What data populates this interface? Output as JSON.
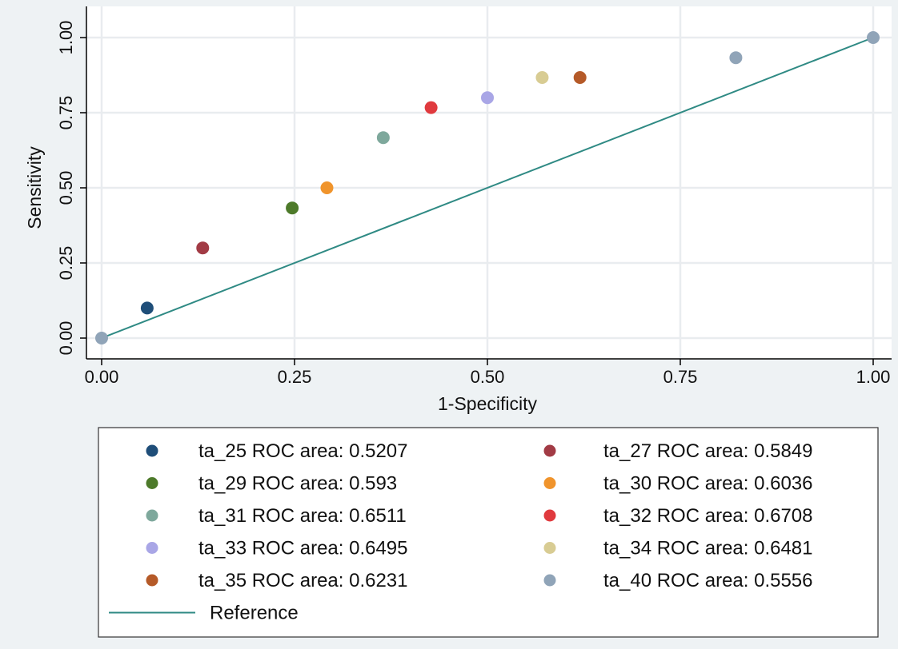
{
  "chart_data": {
    "type": "scatter",
    "xlabel": "1-Specificity",
    "ylabel": "Sensitivity",
    "xlim": [
      0,
      1
    ],
    "ylim": [
      0,
      1
    ],
    "x_ticks": [
      "0.00",
      "0.25",
      "0.50",
      "0.75",
      "1.00"
    ],
    "y_ticks": [
      "0.00",
      "0.25",
      "0.50",
      "0.75",
      "1.00"
    ],
    "grid": true,
    "legend_position": "bottom",
    "common_points": [
      {
        "x": 0,
        "y": 0
      },
      {
        "x": 1,
        "y": 1
      }
    ],
    "series": [
      {
        "name": "ta_25 ROC area: 0.5207",
        "color": "#1f4e79",
        "points": [
          {
            "x": 0.059,
            "y": 0.1
          }
        ]
      },
      {
        "name": "ta_27 ROC area: 0.5849",
        "color": "#a23b45",
        "points": [
          {
            "x": 0.131,
            "y": 0.3
          }
        ]
      },
      {
        "name": "ta_29 ROC area: 0.593",
        "color": "#4d7a2a",
        "points": [
          {
            "x": 0.247,
            "y": 0.433
          }
        ]
      },
      {
        "name": "ta_30 ROC area: 0.6036",
        "color": "#f0942c",
        "points": [
          {
            "x": 0.292,
            "y": 0.5
          }
        ]
      },
      {
        "name": "ta_31 ROC area: 0.6511",
        "color": "#7ea89c",
        "points": [
          {
            "x": 0.365,
            "y": 0.667
          }
        ]
      },
      {
        "name": "ta_32 ROC area: 0.6708",
        "color": "#e03a3e",
        "points": [
          {
            "x": 0.427,
            "y": 0.767
          }
        ]
      },
      {
        "name": "ta_33 ROC area: 0.6495",
        "color": "#a9a6e6",
        "points": [
          {
            "x": 0.5,
            "y": 0.8
          }
        ]
      },
      {
        "name": "ta_34 ROC area: 0.6481",
        "color": "#d8cc93",
        "points": [
          {
            "x": 0.571,
            "y": 0.867
          }
        ]
      },
      {
        "name": "ta_35 ROC area: 0.6231",
        "color": "#b55a28",
        "points": [
          {
            "x": 0.62,
            "y": 0.867
          }
        ]
      },
      {
        "name": "ta_40 ROC area: 0.5556",
        "color": "#90a4b8",
        "points": [
          {
            "x": 0.822,
            "y": 0.933
          }
        ]
      }
    ],
    "reference": {
      "name": "Reference",
      "color": "#2f8a84",
      "points": [
        {
          "x": 0,
          "y": 0
        },
        {
          "x": 1,
          "y": 1
        }
      ]
    }
  }
}
